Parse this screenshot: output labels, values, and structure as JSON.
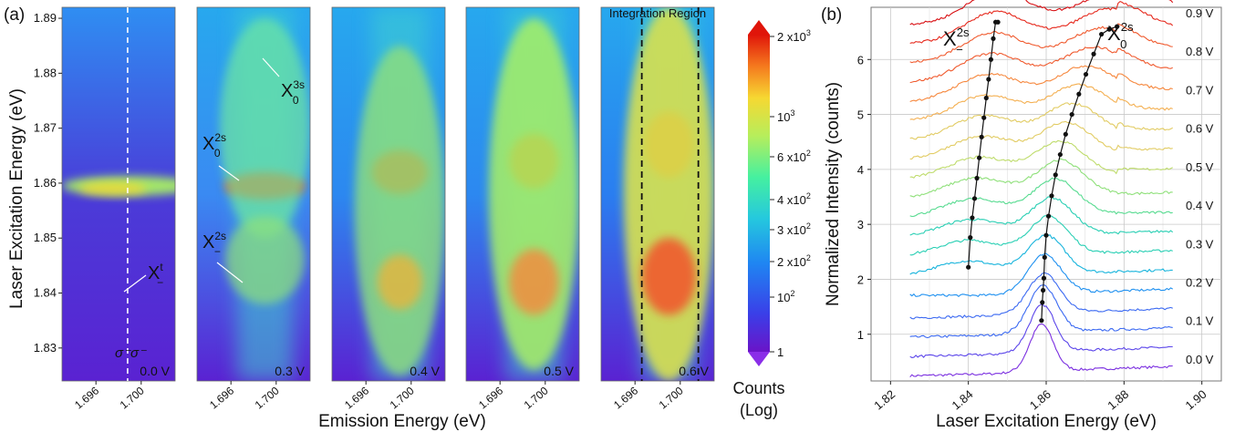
{
  "panel_labels": {
    "a": "(a)",
    "b": "(b)"
  },
  "colors": {
    "jet": [
      "#5a18c8",
      "#3f3ae8",
      "#1f7ff5",
      "#22c2e2",
      "#3ef0a8",
      "#a8f064",
      "#f6e23a",
      "#f89a22",
      "#f04a14",
      "#e01408"
    ],
    "rainbow": [
      "#7b2fe0",
      "#5b45ea",
      "#3c6af2",
      "#1e90f0",
      "#17b4dc",
      "#29cfb4",
      "#57db90",
      "#8fe07a",
      "#bfdc6c",
      "#e2cc64",
      "#f4b052",
      "#f6883e",
      "#f05a2e",
      "#e62a1e",
      "#d80e12"
    ]
  },
  "chart_data": [
    {
      "type": "heatmap",
      "panel": "a",
      "xlabel": "Emission Energy (eV)",
      "ylabel": "Laser Excitation Energy (eV)",
      "xlim": [
        1.693,
        1.703
      ],
      "ylim": [
        1.824,
        1.892
      ],
      "yticks": [
        "1.83",
        "1.84",
        "1.85",
        "1.86",
        "1.87",
        "1.88",
        "1.89"
      ],
      "xticks": [
        "1.696",
        "1.700"
      ],
      "subplots": [
        {
          "voltage_label": "0.0 V",
          "polarization": "σ⁻σ⁻",
          "annotations": [
            {
              "label": "X",
              "sup": "t",
              "sub": "−"
            }
          ]
        },
        {
          "voltage_label": "0.3 V",
          "annotations": [
            {
              "label": "X",
              "sup": "3s",
              "sub": "0"
            },
            {
              "label": "X",
              "sup": "2s",
              "sub": "0"
            },
            {
              "label": "X",
              "sup": "2s",
              "sub": "−"
            }
          ]
        },
        {
          "voltage_label": "0.4 V",
          "annotations": []
        },
        {
          "voltage_label": "0.5 V",
          "annotations": []
        },
        {
          "voltage_label": "0.6 V",
          "annotations": [],
          "region_label": "Integration Region"
        }
      ],
      "colorbar": {
        "scale": "log",
        "tick_labels": [
          {
            "base": "2 x10",
            "exp": "3"
          },
          {
            "base": "10",
            "exp": "3"
          },
          {
            "base": "6 x10",
            "exp": "2"
          },
          {
            "base": "4 x10",
            "exp": "2"
          },
          {
            "base": "3 x10",
            "exp": "2"
          },
          {
            "base": "2 x10",
            "exp": "2"
          },
          {
            "base": "10",
            "exp": "2"
          },
          {
            "base": "1",
            "exp": ""
          }
        ],
        "label_line1": "Counts",
        "label_line2": "(Log)"
      }
    },
    {
      "type": "line",
      "panel": "b",
      "xlabel": "Laser Excitation Energy (eV)",
      "ylabel": "Normalized Intensity (counts)",
      "xlim": [
        1.815,
        1.905
      ],
      "ylim": [
        0.15,
        6.95
      ],
      "xticks": [
        "1.82",
        "1.84",
        "1.86",
        "1.88",
        "1.90"
      ],
      "yticks": [
        "1",
        "2",
        "3",
        "4",
        "5",
        "6"
      ],
      "grid": true,
      "voltage_labels": [
        "0.0 V",
        "0.1 V",
        "0.2 V",
        "0.3 V",
        "0.4 V",
        "0.5 V",
        "0.6 V",
        "0.7 V",
        "0.8 V",
        "0.9 V"
      ],
      "series_count": 19,
      "series_offset_start": 0.3,
      "series_offset_step": 0.352,
      "annotations": [
        {
          "label": "X",
          "sup": "2s",
          "sub": "−"
        },
        {
          "label": "X",
          "sup": "2s",
          "sub": "0"
        }
      ],
      "x2s_minus_peak": {
        "x": [
          1.84,
          1.8405,
          1.841,
          1.8416,
          1.8422,
          1.8428,
          1.8434,
          1.844,
          1.8446,
          1.8452,
          1.8458,
          1.8464,
          1.847,
          1.8476
        ],
        "y": [
          2.22,
          2.76,
          3.12,
          3.47,
          3.84,
          4.21,
          4.59,
          4.94,
          5.3,
          5.64,
          6.0,
          6.38,
          6.68,
          6.68
        ]
      },
      "x2s_zero_peak": {
        "x": [
          1.8588,
          1.859,
          1.8592,
          1.8594,
          1.8596,
          1.86,
          1.8606,
          1.8614,
          1.8624,
          1.8636,
          1.865,
          1.8666,
          1.8684,
          1.8702,
          1.8722,
          1.8742,
          1.8762,
          1.8782
        ],
        "y": [
          1.25,
          1.58,
          1.8,
          2.02,
          2.4,
          2.8,
          3.15,
          3.52,
          3.9,
          4.27,
          4.64,
          5.0,
          5.37,
          5.73,
          6.1,
          6.46,
          6.55,
          6.6
        ]
      }
    }
  ]
}
